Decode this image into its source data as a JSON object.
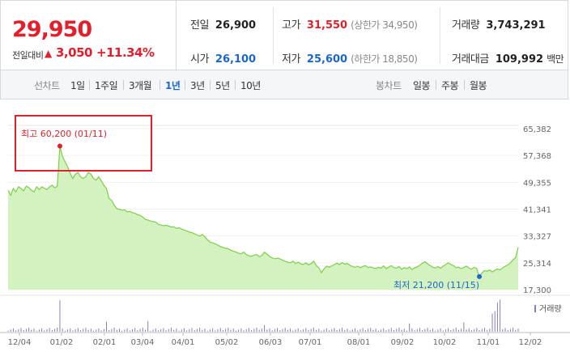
{
  "summary": {
    "price": "29,950",
    "change_label": "전일대비",
    "change_arrow": "▲",
    "change_value": "3,050",
    "change_pct": "+11.34%"
  },
  "stats": {
    "prev_label": "전일",
    "prev_value": "26,900",
    "open_label": "시가",
    "open_value": "26,100",
    "high_label": "고가",
    "high_value": "31,550",
    "upper_limit": "(상한가 34,950)",
    "low_label": "저가",
    "low_value": "25,600",
    "lower_limit": "(하한가 18,850)",
    "volume_label": "거래량",
    "volume_value": "3,743,291",
    "amount_label": "거래대금",
    "amount_value": "109,992",
    "amount_unit": "백만"
  },
  "tabs": {
    "line_group": "선차트",
    "line_items": [
      "1일",
      "1주일",
      "3개월",
      "1년",
      "3년",
      "5년",
      "10년"
    ],
    "active": "1년",
    "candle_group": "봉차트",
    "candle_items": [
      "일봉",
      "주봉",
      "월봉"
    ]
  },
  "colors": {
    "up": "#e31f2b",
    "down": "#1a67c9",
    "area_line": "#7ccf4a",
    "area_fill": "#d4f2c0",
    "volume": "#8a7cc0",
    "highlight_box": "#e31f2b"
  },
  "chart_data": {
    "type": "area",
    "ylim": [
      17300,
      65382
    ],
    "y_ticks": [
      "65,382",
      "57,368",
      "49,355",
      "41,341",
      "33,327",
      "25,314",
      "17,300"
    ],
    "x_tick_labels": [
      "12/04",
      "01/02",
      "02/01",
      "03/04",
      "04/01",
      "05/02",
      "06/03",
      "07/01",
      "08/01",
      "09/02",
      "10/02",
      "11/01",
      "12/02"
    ],
    "max_annotation": "최고 60,200 (01/11)",
    "min_annotation": "최저 21,200 (11/15)",
    "volume_legend": "거래량",
    "price_series": [
      47000,
      45500,
      47500,
      46500,
      48000,
      47500,
      46800,
      48200,
      47800,
      47000,
      46500,
      48000,
      47200,
      48000,
      47600,
      47200,
      48000,
      48500,
      47700,
      48200,
      60200,
      57000,
      55500,
      54000,
      52000,
      50500,
      51800,
      52300,
      51000,
      50500,
      51000,
      52300,
      51800,
      50500,
      50000,
      51000,
      49800,
      48500,
      47500,
      44500,
      44000,
      42500,
      41500,
      41300,
      41000,
      41200,
      40500,
      40700,
      40300,
      40100,
      39700,
      39500,
      39000,
      38300,
      38100,
      37800,
      37600,
      37500,
      36800,
      36600,
      36400,
      36500,
      36300,
      36000,
      36100,
      35600,
      35800,
      35400,
      35100,
      34800,
      34500,
      34300,
      34000,
      33600,
      33300,
      33800,
      33100,
      32200,
      31500,
      31300,
      31000,
      30600,
      30200,
      29900,
      29700,
      29500,
      29100,
      28800,
      28500,
      28200,
      28000,
      28500,
      27800,
      27400,
      27300,
      27600,
      27800,
      27100,
      27500,
      28500,
      27900,
      27200,
      26800,
      26500,
      26700,
      26500,
      26100,
      25800,
      25500,
      25300,
      25800,
      25100,
      25500,
      25000,
      24800,
      25300,
      24700,
      25100,
      25800,
      24500,
      23800,
      22400,
      23500,
      24300,
      24000,
      24400,
      24800,
      25200,
      24800,
      25400,
      24900,
      25100,
      24600,
      24200,
      24000,
      24300,
      23900,
      24200,
      24500,
      23900,
      24100,
      23800,
      23600,
      24000,
      23700,
      24400,
      23600,
      24000,
      24500,
      23900,
      23700,
      24200,
      23400,
      23900,
      23600,
      24100,
      23300,
      23800,
      24100,
      24600,
      25200,
      25600,
      25000,
      24500,
      24000,
      23800,
      24200,
      23700,
      24300,
      24800,
      25300,
      24800,
      24500,
      23900,
      24000,
      23600,
      23900,
      24300,
      23800,
      23400,
      24000,
      23600,
      21200,
      22300,
      23000,
      22800,
      23200,
      22600,
      23100,
      23500,
      23200,
      23800,
      24300,
      24700,
      25300,
      26200,
      26900,
      29950
    ],
    "volume_spikes": [
      [
        20,
        0.95
      ],
      [
        38,
        0.3
      ],
      [
        54,
        0.32
      ],
      [
        99,
        0.2
      ],
      [
        155,
        0.25
      ],
      [
        176,
        0.28
      ],
      [
        187,
        0.55
      ],
      [
        188,
        0.62
      ],
      [
        189,
        0.88
      ],
      [
        190,
        0.97
      ]
    ]
  }
}
